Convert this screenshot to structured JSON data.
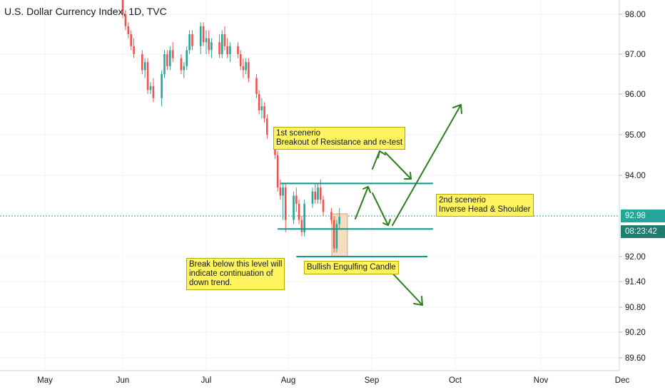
{
  "title": "U.S. Dollar Currency Index, 1D, TVC",
  "price_tag": "92.98",
  "countdown_tag": "08:23:42",
  "colors": {
    "up": "#26a69a",
    "down": "#ef5350",
    "level_line": "#089981",
    "arrow": "#2e7d1f",
    "note_bg": "#fff45f",
    "price_tag_bg": "#26a69a",
    "countdown_bg": "#1f7d6f",
    "engulf_box": "#f4d7b5"
  },
  "annotations": {
    "scenario1": "1st scenerio\nBreakout of Resistance and re-test",
    "scenario2": "2nd scenerio\nInverse Head & Shoulder",
    "break_below": "Break below this level will\nindicate continuation of\ndown trend.",
    "engulfing": "Bullish Engulfing Candle"
  },
  "chart_data": {
    "type": "candlestick",
    "title": "U.S. Dollar Currency Index, 1D, TVC",
    "x_ticks": [
      "May",
      "Jun",
      "Jul",
      "Aug",
      "Sep",
      "Oct",
      "Nov",
      "Dec"
    ],
    "y_ticks": [
      "98.00",
      "97.00",
      "96.00",
      "95.00",
      "94.00",
      "92.00",
      "91.40",
      "90.80",
      "90.20",
      "89.60"
    ],
    "current_price": 92.98,
    "levels": [
      {
        "value": 93.8,
        "from": "2020-07-29",
        "to": "2020-09-23"
      },
      {
        "value": 92.68,
        "from": "2020-07-28",
        "to": "2020-09-23"
      },
      {
        "value": 92.0,
        "from": "2020-08-04",
        "to": "2020-09-21"
      }
    ],
    "candles": [
      {
        "date": "2020-06-01",
        "o": 98.4,
        "h": 98.5,
        "l": 97.9,
        "c": 98.0
      },
      {
        "date": "2020-06-02",
        "o": 98.0,
        "h": 98.1,
        "l": 97.6,
        "c": 97.7
      },
      {
        "date": "2020-06-03",
        "o": 97.7,
        "h": 97.8,
        "l": 97.4,
        "c": 97.5
      },
      {
        "date": "2020-06-04",
        "o": 97.5,
        "h": 97.6,
        "l": 97.1,
        "c": 97.2
      },
      {
        "date": "2020-06-05",
        "o": 97.2,
        "h": 97.4,
        "l": 96.9,
        "c": 97.0
      },
      {
        "date": "2020-06-08",
        "o": 97.0,
        "h": 97.1,
        "l": 96.5,
        "c": 96.6
      },
      {
        "date": "2020-06-09",
        "o": 96.6,
        "h": 96.9,
        "l": 96.4,
        "c": 96.8
      },
      {
        "date": "2020-06-10",
        "o": 96.8,
        "h": 96.9,
        "l": 96.0,
        "c": 96.1
      },
      {
        "date": "2020-06-11",
        "o": 96.1,
        "h": 96.3,
        "l": 96.0,
        "c": 96.2
      },
      {
        "date": "2020-06-12",
        "o": 96.2,
        "h": 96.4,
        "l": 95.8,
        "c": 95.9
      },
      {
        "date": "2020-06-15",
        "o": 95.9,
        "h": 96.6,
        "l": 95.7,
        "c": 96.5
      },
      {
        "date": "2020-06-16",
        "o": 96.5,
        "h": 97.1,
        "l": 96.4,
        "c": 97.0
      },
      {
        "date": "2020-06-17",
        "o": 97.0,
        "h": 97.1,
        "l": 96.6,
        "c": 96.7
      },
      {
        "date": "2020-06-18",
        "o": 96.7,
        "h": 97.2,
        "l": 96.6,
        "c": 97.1
      },
      {
        "date": "2020-06-19",
        "o": 97.1,
        "h": 97.3,
        "l": 96.8,
        "c": 96.9
      },
      {
        "date": "2020-06-22",
        "o": 96.9,
        "h": 97.0,
        "l": 96.5,
        "c": 96.6
      },
      {
        "date": "2020-06-23",
        "o": 96.6,
        "h": 96.8,
        "l": 96.4,
        "c": 96.7
      },
      {
        "date": "2020-06-24",
        "o": 96.7,
        "h": 97.2,
        "l": 96.6,
        "c": 97.1
      },
      {
        "date": "2020-06-25",
        "o": 97.1,
        "h": 97.6,
        "l": 97.0,
        "c": 97.5
      },
      {
        "date": "2020-06-26",
        "o": 97.5,
        "h": 97.6,
        "l": 97.1,
        "c": 97.2
      },
      {
        "date": "2020-06-29",
        "o": 97.2,
        "h": 97.8,
        "l": 97.0,
        "c": 97.7
      },
      {
        "date": "2020-06-30",
        "o": 97.7,
        "h": 97.8,
        "l": 97.2,
        "c": 97.3
      },
      {
        "date": "2020-07-01",
        "o": 97.3,
        "h": 97.6,
        "l": 97.0,
        "c": 97.4
      },
      {
        "date": "2020-07-02",
        "o": 97.4,
        "h": 97.6,
        "l": 97.0,
        "c": 97.1
      },
      {
        "date": "2020-07-03",
        "o": 97.1,
        "h": 97.4,
        "l": 96.9,
        "c": 97.3
      },
      {
        "date": "2020-07-06",
        "o": 97.3,
        "h": 97.5,
        "l": 96.9,
        "c": 97.0
      },
      {
        "date": "2020-07-07",
        "o": 97.0,
        "h": 97.6,
        "l": 96.9,
        "c": 97.5
      },
      {
        "date": "2020-07-08",
        "o": 97.5,
        "h": 97.7,
        "l": 97.1,
        "c": 97.2
      },
      {
        "date": "2020-07-09",
        "o": 97.2,
        "h": 97.4,
        "l": 96.9,
        "c": 97.0
      },
      {
        "date": "2020-07-10",
        "o": 97.0,
        "h": 97.3,
        "l": 96.8,
        "c": 97.2
      },
      {
        "date": "2020-07-13",
        "o": 97.2,
        "h": 97.3,
        "l": 96.9,
        "c": 97.0
      },
      {
        "date": "2020-07-14",
        "o": 97.0,
        "h": 97.1,
        "l": 96.6,
        "c": 96.7
      },
      {
        "date": "2020-07-15",
        "o": 96.7,
        "h": 96.9,
        "l": 96.4,
        "c": 96.6
      },
      {
        "date": "2020-07-16",
        "o": 96.6,
        "h": 96.9,
        "l": 96.5,
        "c": 96.8
      },
      {
        "date": "2020-07-17",
        "o": 96.8,
        "h": 96.9,
        "l": 96.3,
        "c": 96.4
      },
      {
        "date": "2020-07-20",
        "o": 96.4,
        "h": 96.5,
        "l": 95.9,
        "c": 96.0
      },
      {
        "date": "2020-07-21",
        "o": 96.0,
        "h": 96.1,
        "l": 95.5,
        "c": 95.6
      },
      {
        "date": "2020-07-22",
        "o": 95.6,
        "h": 95.9,
        "l": 95.4,
        "c": 95.7
      },
      {
        "date": "2020-07-23",
        "o": 95.7,
        "h": 95.8,
        "l": 95.3,
        "c": 95.4
      },
      {
        "date": "2020-07-24",
        "o": 95.4,
        "h": 95.5,
        "l": 94.9,
        "c": 95.0
      },
      {
        "date": "2020-07-27",
        "o": 95.0,
        "h": 95.1,
        "l": 94.4,
        "c": 94.5
      },
      {
        "date": "2020-07-28",
        "o": 94.5,
        "h": 94.6,
        "l": 93.6,
        "c": 93.7
      },
      {
        "date": "2020-07-29",
        "o": 93.7,
        "h": 93.9,
        "l": 93.4,
        "c": 93.5
      },
      {
        "date": "2020-07-30",
        "o": 93.5,
        "h": 93.8,
        "l": 92.9,
        "c": 93.7
      },
      {
        "date": "2020-07-31",
        "o": 93.7,
        "h": 93.8,
        "l": 92.6,
        "c": 92.9
      },
      {
        "date": "2020-08-03",
        "o": 92.9,
        "h": 93.6,
        "l": 92.8,
        "c": 93.5
      },
      {
        "date": "2020-08-04",
        "o": 93.5,
        "h": 93.7,
        "l": 93.1,
        "c": 93.3
      },
      {
        "date": "2020-08-05",
        "o": 93.3,
        "h": 93.4,
        "l": 92.8,
        "c": 92.9
      },
      {
        "date": "2020-08-06",
        "o": 92.9,
        "h": 93.0,
        "l": 92.5,
        "c": 92.6
      },
      {
        "date": "2020-08-07",
        "o": 92.6,
        "h": 93.4,
        "l": 92.5,
        "c": 93.3
      },
      {
        "date": "2020-08-10",
        "o": 93.3,
        "h": 93.7,
        "l": 93.2,
        "c": 93.6
      },
      {
        "date": "2020-08-11",
        "o": 93.6,
        "h": 93.8,
        "l": 93.3,
        "c": 93.4
      },
      {
        "date": "2020-08-12",
        "o": 93.4,
        "h": 93.8,
        "l": 93.3,
        "c": 93.7
      },
      {
        "date": "2020-08-13",
        "o": 93.7,
        "h": 93.9,
        "l": 93.3,
        "c": 93.4
      },
      {
        "date": "2020-08-14",
        "o": 93.4,
        "h": 93.5,
        "l": 93.0,
        "c": 93.1
      },
      {
        "date": "2020-08-17",
        "o": 93.1,
        "h": 93.2,
        "l": 92.8,
        "c": 92.9
      },
      {
        "date": "2020-08-18",
        "o": 92.9,
        "h": 93.0,
        "l": 92.1,
        "c": 92.2
      },
      {
        "date": "2020-08-19",
        "o": 92.2,
        "h": 92.9,
        "l": 92.1,
        "c": 92.8
      },
      {
        "date": "2020-08-20",
        "o": 92.8,
        "h": 93.2,
        "l": 92.7,
        "c": 92.98
      }
    ]
  }
}
